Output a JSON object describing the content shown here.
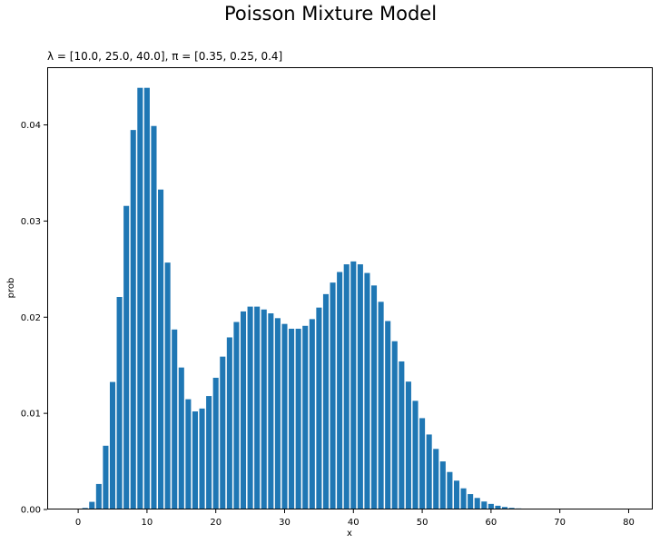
{
  "chart_data": {
    "type": "bar",
    "suptitle": "Poisson Mixture Model",
    "title": "λ = [10.0, 25.0, 40.0], π = [0.35, 0.25, 0.4]",
    "xlabel": "x",
    "ylabel": "prob",
    "xlim": [
      -4.5,
      83.5
    ],
    "ylim": [
      0,
      0.046
    ],
    "xticks": [
      0,
      10,
      20,
      30,
      40,
      50,
      60,
      70,
      80
    ],
    "xtick_labels": [
      "0",
      "10",
      "20",
      "30",
      "40",
      "50",
      "60",
      "70",
      "80"
    ],
    "yticks": [
      0.0,
      0.01,
      0.02,
      0.03,
      0.04
    ],
    "ytick_labels": [
      "0.00",
      "0.01",
      "0.02",
      "0.03",
      "0.04"
    ],
    "bar_color": "#1f77b4",
    "x": [
      0,
      1,
      2,
      3,
      4,
      5,
      6,
      7,
      8,
      9,
      10,
      11,
      12,
      13,
      14,
      15,
      16,
      17,
      18,
      19,
      20,
      21,
      22,
      23,
      24,
      25,
      26,
      27,
      28,
      29,
      30,
      31,
      32,
      33,
      34,
      35,
      36,
      37,
      38,
      39,
      40,
      41,
      42,
      43,
      44,
      45,
      46,
      47,
      48,
      49,
      50,
      51,
      52,
      53,
      54,
      55,
      56,
      57,
      58,
      59,
      60,
      61,
      62,
      63,
      64,
      65,
      66,
      67,
      68,
      69,
      70,
      71,
      72,
      73,
      74,
      75,
      76,
      77,
      78,
      79,
      80
    ],
    "values": [
      1.6e-05,
      0.000159,
      0.000796,
      0.002652,
      0.006631,
      0.013262,
      0.022103,
      0.031576,
      0.03947,
      0.043856,
      0.043856,
      0.039887,
      0.033276,
      0.02568,
      0.01872,
      0.014767,
      0.011467,
      0.0102,
      0.0105,
      0.0118,
      0.0137,
      0.0159,
      0.0179,
      0.0195,
      0.0206,
      0.0211,
      0.0211,
      0.0208,
      0.0204,
      0.0199,
      0.0193,
      0.0188,
      0.0188,
      0.0191,
      0.0198,
      0.021,
      0.0224,
      0.0236,
      0.0247,
      0.0255,
      0.0258,
      0.0255,
      0.0246,
      0.0233,
      0.0216,
      0.0196,
      0.0175,
      0.0154,
      0.0133,
      0.0113,
      0.0095,
      0.0078,
      0.0063,
      0.005,
      0.0039,
      0.003,
      0.0022,
      0.0016,
      0.0012,
      0.00083,
      0.00058,
      0.00039,
      0.00026,
      0.00017,
      0.00011,
      7e-05,
      4e-05,
      2.5e-05,
      1.5e-05,
      9e-06,
      5e-06,
      3e-06,
      2e-06,
      1e-06,
      5e-07,
      3e-07,
      2e-07,
      1e-07,
      5e-08,
      3e-08,
      2e-08
    ]
  }
}
